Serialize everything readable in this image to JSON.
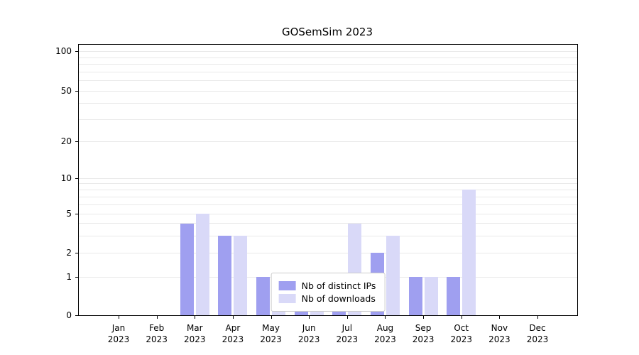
{
  "chart_data": {
    "type": "bar",
    "title": "GOSemSim 2023",
    "xlabel": "",
    "ylabel": "",
    "categories": [
      "Jan 2023",
      "Feb 2023",
      "Mar 2023",
      "Apr 2023",
      "May 2023",
      "Jun 2023",
      "Jul 2023",
      "Aug 2023",
      "Sep 2023",
      "Oct 2023",
      "Nov 2023",
      "Dec 2023"
    ],
    "series": [
      {
        "name": "Nb of distinct IPs",
        "color": "#9f9ff0",
        "values": [
          0,
          0,
          4,
          3,
          1,
          1,
          1,
          2,
          1,
          1,
          0,
          0
        ]
      },
      {
        "name": "Nb of downloads",
        "color": "#d9d9f8",
        "values": [
          0,
          0,
          5,
          3,
          1,
          1,
          4,
          3,
          1,
          8,
          0,
          0
        ]
      }
    ],
    "yticks": [
      0,
      1,
      2,
      5,
      10,
      20,
      50,
      100
    ],
    "minor_gridline_values": [
      1,
      2,
      3,
      4,
      5,
      6,
      7,
      8,
      9,
      10,
      20,
      30,
      40,
      50,
      60,
      70,
      80,
      90,
      100
    ],
    "ylim": [
      0,
      100
    ],
    "yscale": "log-like",
    "grid": "horizontal",
    "legend_position": "lower-center-inside"
  },
  "legend": {
    "items": [
      "Nb of distinct IPs",
      "Nb of downloads"
    ]
  }
}
